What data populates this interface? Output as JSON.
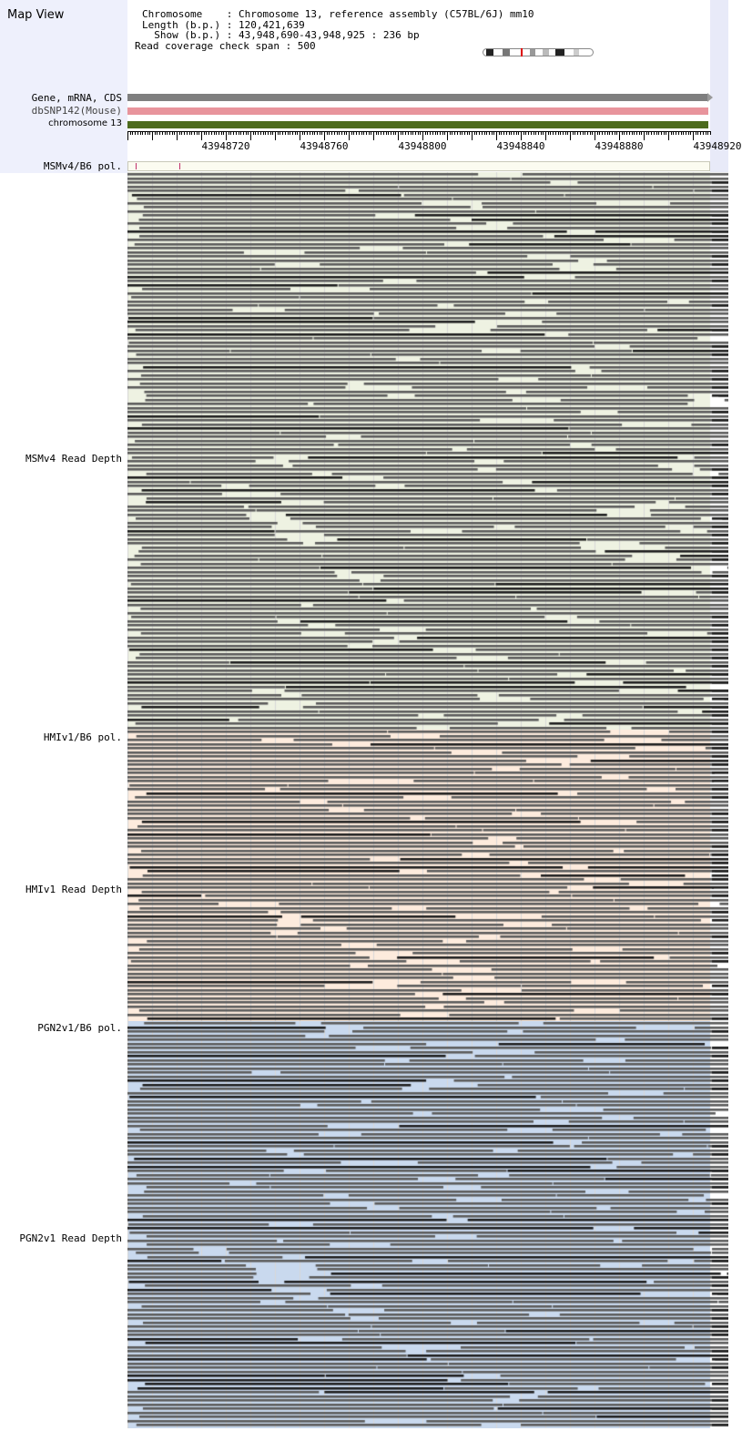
{
  "app_title": "Map View",
  "header": {
    "chromosome_line": "Chromosome    : Chromosome 13, reference assembly (C57BL/6J) mm10",
    "length_line": "Length (b.p.) : 120,421,639",
    "show_line": "  Show (b.p.) : 43,948,690-43,948,925 : 236 bp",
    "span_line": "Read coverage check span : 500"
  },
  "tracks": [
    {
      "label": "Gene, mRNA, CDS",
      "color": "#7f7f7f"
    },
    {
      "label": "dbSNP142(Mouse)",
      "color": "#e8949c"
    },
    {
      "label": "chromosome 13",
      "color": "#4d6b1e"
    }
  ],
  "ruler": {
    "ticks": [
      "43948720",
      "43948760",
      "43948800",
      "43948840",
      "43948880",
      "43948920"
    ]
  },
  "strains": [
    {
      "pol_label": "MSMv4/B6 pol.",
      "depth_label": "MSMv4 Read Depth",
      "bg": "#eef2e2"
    },
    {
      "pol_label": "HMIv1/B6 pol.",
      "depth_label": "HMIv1 Read Depth",
      "bg": "#fdebdd"
    },
    {
      "pol_label": "PGN2v1/B6 pol.",
      "depth_label": "PGN2v1 Read Depth",
      "bg": "#c9d9ee"
    }
  ],
  "colors": {
    "read": "#5c5c5c",
    "read_dark": "#1e1e1e",
    "grid": "#d8d8d8"
  }
}
